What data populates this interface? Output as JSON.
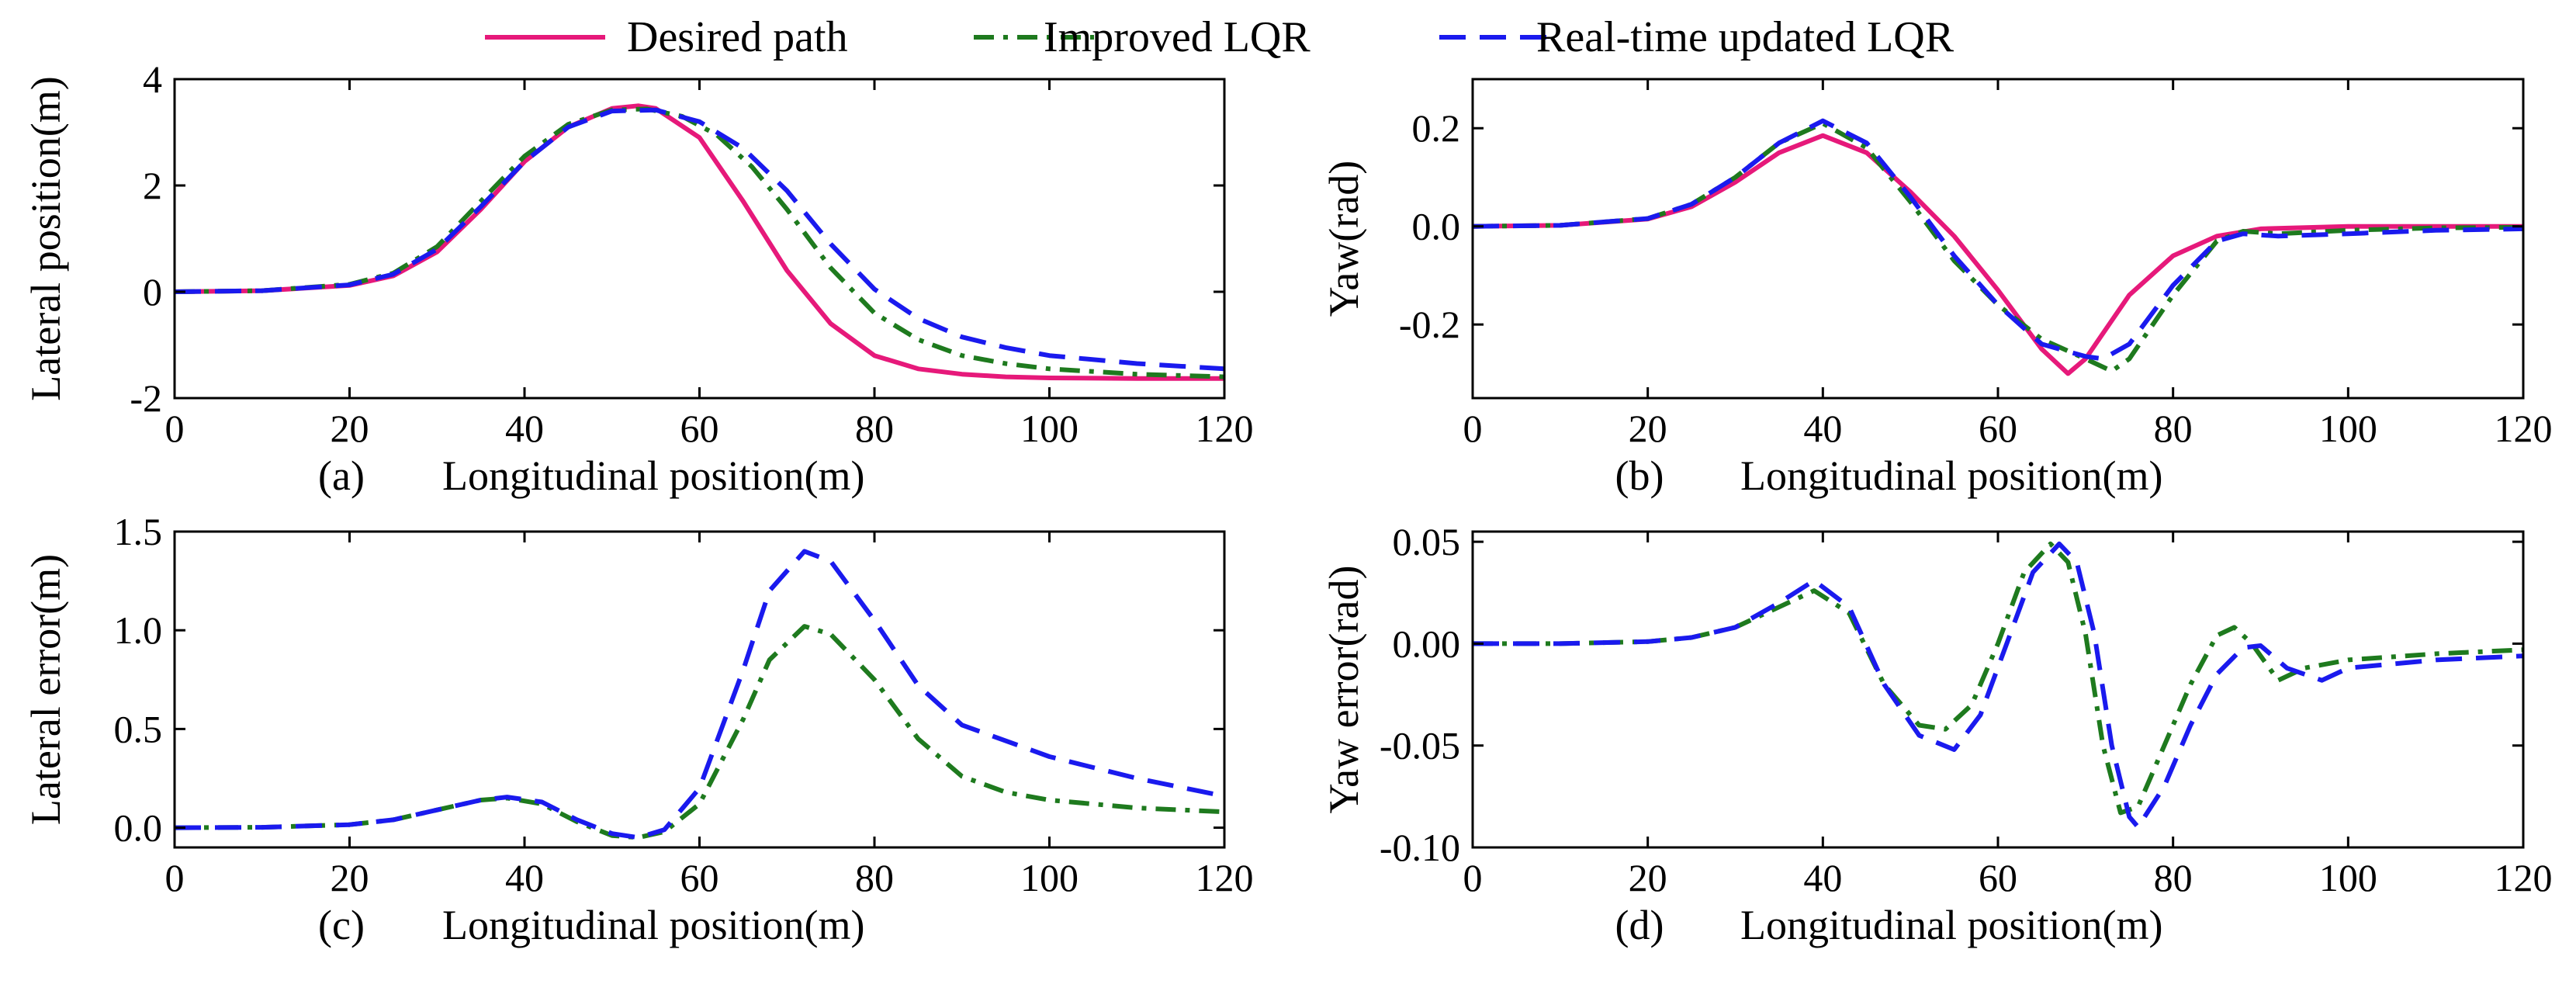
{
  "legend": {
    "entries": [
      {
        "label": "Desired path",
        "color": "#e6197a",
        "style": "solid"
      },
      {
        "label": "Improved LQR",
        "color": "#1e7a1e",
        "style": "dashdot"
      },
      {
        "label": "Real-time updated LQR",
        "color": "#1a1aee",
        "style": "dashed"
      }
    ],
    "placement": "top-center"
  },
  "chart_data": [
    {
      "id": "a",
      "type": "line",
      "tag": "(a)",
      "xlabel": "Longitudinal position(m)",
      "ylabel": "Lateral position(m)",
      "xlim": [
        0,
        120
      ],
      "ylim": [
        -2,
        4
      ],
      "xticks": [
        0,
        20,
        40,
        60,
        80,
        100,
        120
      ],
      "xtick_labels": [
        "0",
        "20",
        "40",
        "60",
        "80",
        "100",
        "120"
      ],
      "yticks": [
        -2,
        0,
        2,
        4
      ],
      "ytick_labels": [
        "-2",
        "0",
        "2",
        "4"
      ],
      "grid": false,
      "series": [
        {
          "name": "Desired path",
          "color": "#e6197a",
          "style": "solid",
          "x": [
            0,
            10,
            20,
            25,
            30,
            35,
            40,
            45,
            50,
            53,
            55,
            60,
            65,
            70,
            75,
            80,
            85,
            90,
            95,
            100,
            110,
            120
          ],
          "y": [
            0,
            0.02,
            0.12,
            0.3,
            0.75,
            1.55,
            2.45,
            3.1,
            3.45,
            3.5,
            3.45,
            2.9,
            1.7,
            0.4,
            -0.6,
            -1.2,
            -1.45,
            -1.55,
            -1.6,
            -1.62,
            -1.63,
            -1.63
          ]
        },
        {
          "name": "Improved LQR",
          "color": "#1e7a1e",
          "style": "dashdot",
          "x": [
            0,
            10,
            20,
            25,
            30,
            35,
            40,
            45,
            50,
            54,
            58,
            62,
            66,
            70,
            75,
            80,
            85,
            90,
            95,
            100,
            110,
            120
          ],
          "y": [
            0,
            0.02,
            0.14,
            0.35,
            0.85,
            1.7,
            2.55,
            3.15,
            3.42,
            3.44,
            3.3,
            2.95,
            2.35,
            1.55,
            0.45,
            -0.4,
            -0.9,
            -1.2,
            -1.35,
            -1.45,
            -1.55,
            -1.6
          ]
        },
        {
          "name": "Real-time updated LQR",
          "color": "#1a1aee",
          "style": "dashed",
          "x": [
            0,
            10,
            20,
            25,
            30,
            35,
            40,
            45,
            50,
            55,
            60,
            65,
            70,
            75,
            80,
            85,
            90,
            95,
            100,
            110,
            120
          ],
          "y": [
            0,
            0.02,
            0.13,
            0.33,
            0.8,
            1.6,
            2.45,
            3.1,
            3.4,
            3.42,
            3.2,
            2.7,
            1.9,
            0.9,
            0.05,
            -0.5,
            -0.85,
            -1.05,
            -1.2,
            -1.35,
            -1.45
          ]
        }
      ]
    },
    {
      "id": "b",
      "type": "line",
      "tag": "(b)",
      "xlabel": "Longitudinal position(m)",
      "ylabel": "Yaw(rad)",
      "xlim": [
        0,
        120
      ],
      "ylim": [
        -0.35,
        0.3
      ],
      "xticks": [
        0,
        20,
        40,
        60,
        80,
        100,
        120
      ],
      "xtick_labels": [
        "0",
        "20",
        "40",
        "60",
        "80",
        "100",
        "120"
      ],
      "yticks": [
        -0.2,
        0.0,
        0.2
      ],
      "ytick_labels": [
        "-0.2",
        "0.0",
        "0.2"
      ],
      "grid": false,
      "series": [
        {
          "name": "Desired path",
          "color": "#e6197a",
          "style": "solid",
          "x": [
            0,
            10,
            20,
            25,
            30,
            35,
            40,
            45,
            50,
            55,
            60,
            65,
            68,
            70,
            75,
            80,
            85,
            90,
            100,
            110,
            120
          ],
          "y": [
            0,
            0.002,
            0.015,
            0.04,
            0.09,
            0.15,
            0.185,
            0.15,
            0.07,
            -0.02,
            -0.13,
            -0.25,
            -0.3,
            -0.27,
            -0.14,
            -0.06,
            -0.02,
            -0.005,
            0,
            0,
            0
          ]
        },
        {
          "name": "Improved LQR",
          "color": "#1e7a1e",
          "style": "dashdot",
          "x": [
            0,
            10,
            20,
            25,
            30,
            35,
            40,
            45,
            50,
            55,
            60,
            65,
            70,
            73,
            75,
            80,
            85,
            88,
            92,
            100,
            110,
            120
          ],
          "y": [
            0,
            0.002,
            0.016,
            0.045,
            0.1,
            0.17,
            0.21,
            0.16,
            0.05,
            -0.07,
            -0.16,
            -0.23,
            -0.27,
            -0.295,
            -0.27,
            -0.14,
            -0.03,
            -0.01,
            -0.015,
            -0.008,
            -0.003,
            -0.002
          ]
        },
        {
          "name": "Real-time updated LQR",
          "color": "#1a1aee",
          "style": "dashed",
          "x": [
            0,
            10,
            20,
            25,
            30,
            35,
            40,
            45,
            50,
            55,
            60,
            65,
            70,
            72,
            75,
            80,
            85,
            88,
            92,
            100,
            110,
            120
          ],
          "y": [
            0,
            0.002,
            0.016,
            0.045,
            0.1,
            0.17,
            0.215,
            0.17,
            0.06,
            -0.06,
            -0.16,
            -0.24,
            -0.265,
            -0.27,
            -0.24,
            -0.12,
            -0.03,
            -0.015,
            -0.02,
            -0.015,
            -0.008,
            -0.005
          ]
        }
      ]
    },
    {
      "id": "c",
      "type": "line",
      "tag": "(c)",
      "xlabel": "Longitudinal position(m)",
      "ylabel": "Lateral error(m)",
      "xlim": [
        0,
        120
      ],
      "ylim": [
        -0.1,
        1.5
      ],
      "xticks": [
        0,
        20,
        40,
        60,
        80,
        100,
        120
      ],
      "xtick_labels": [
        "0",
        "20",
        "40",
        "60",
        "80",
        "100",
        "120"
      ],
      "yticks": [
        0.0,
        0.5,
        1.0,
        1.5
      ],
      "ytick_labels": [
        "0.0",
        "0.5",
        "1.0",
        "1.5"
      ],
      "grid": false,
      "series": [
        {
          "name": "Improved LQR",
          "color": "#1e7a1e",
          "style": "dashdot",
          "x": [
            0,
            10,
            20,
            25,
            30,
            35,
            38,
            42,
            46,
            50,
            53,
            56,
            60,
            65,
            68,
            72,
            75,
            80,
            85,
            90,
            95,
            100,
            110,
            120
          ],
          "y": [
            0,
            0.002,
            0.015,
            0.04,
            0.09,
            0.14,
            0.15,
            0.12,
            0.03,
            -0.04,
            -0.05,
            -0.02,
            0.12,
            0.55,
            0.85,
            1.02,
            0.98,
            0.75,
            0.45,
            0.26,
            0.18,
            0.14,
            0.1,
            0.08
          ]
        },
        {
          "name": "Real-time updated LQR",
          "color": "#1a1aee",
          "style": "dashed",
          "x": [
            0,
            10,
            20,
            25,
            30,
            35,
            38,
            42,
            46,
            50,
            53,
            56,
            60,
            65,
            68,
            72,
            75,
            80,
            85,
            90,
            100,
            110,
            120
          ],
          "y": [
            0,
            0.002,
            0.015,
            0.04,
            0.09,
            0.14,
            0.155,
            0.13,
            0.04,
            -0.03,
            -0.05,
            -0.01,
            0.2,
            0.8,
            1.2,
            1.4,
            1.35,
            1.05,
            0.72,
            0.52,
            0.36,
            0.25,
            0.16
          ]
        }
      ]
    },
    {
      "id": "d",
      "type": "line",
      "tag": "(d)",
      "xlabel": "Longitudinal position(m)",
      "ylabel": "Yaw error(rad)",
      "xlim": [
        0,
        120
      ],
      "ylim": [
        -0.1,
        0.055
      ],
      "xticks": [
        0,
        20,
        40,
        60,
        80,
        100,
        120
      ],
      "xtick_labels": [
        "0",
        "20",
        "40",
        "60",
        "80",
        "100",
        "120"
      ],
      "yticks": [
        -0.1,
        -0.05,
        0.0,
        0.05
      ],
      "ytick_labels": [
        "-0.10",
        "-0.05",
        "0.00",
        "0.05"
      ],
      "grid": false,
      "series": [
        {
          "name": "Improved LQR",
          "color": "#1e7a1e",
          "style": "dashdot",
          "x": [
            0,
            10,
            20,
            25,
            30,
            35,
            39,
            43,
            47,
            51,
            54,
            57,
            60,
            63,
            66,
            68,
            70,
            72,
            74,
            76,
            79,
            82,
            85,
            87,
            89,
            92,
            95,
            100,
            110,
            120
          ],
          "y": [
            0,
            0,
            0.001,
            0.003,
            0.008,
            0.018,
            0.026,
            0.015,
            -0.02,
            -0.04,
            -0.042,
            -0.03,
            0.0,
            0.035,
            0.049,
            0.04,
            0.005,
            -0.05,
            -0.083,
            -0.08,
            -0.05,
            -0.02,
            0.004,
            0.008,
            0.0,
            -0.018,
            -0.012,
            -0.008,
            -0.005,
            -0.003
          ]
        },
        {
          "name": "Real-time updated LQR",
          "color": "#1a1aee",
          "style": "dashed",
          "x": [
            0,
            10,
            20,
            25,
            30,
            35,
            39,
            43,
            47,
            51,
            55,
            58,
            61,
            64,
            67,
            69,
            71,
            73,
            75,
            76,
            79,
            82,
            85,
            88,
            90,
            93,
            97,
            100,
            110,
            120
          ],
          "y": [
            0,
            0,
            0.001,
            0.003,
            0.008,
            0.02,
            0.031,
            0.018,
            -0.02,
            -0.045,
            -0.052,
            -0.035,
            0.0,
            0.035,
            0.049,
            0.04,
            0.005,
            -0.05,
            -0.085,
            -0.09,
            -0.07,
            -0.04,
            -0.015,
            -0.002,
            -0.001,
            -0.012,
            -0.018,
            -0.012,
            -0.008,
            -0.006
          ]
        }
      ]
    }
  ]
}
